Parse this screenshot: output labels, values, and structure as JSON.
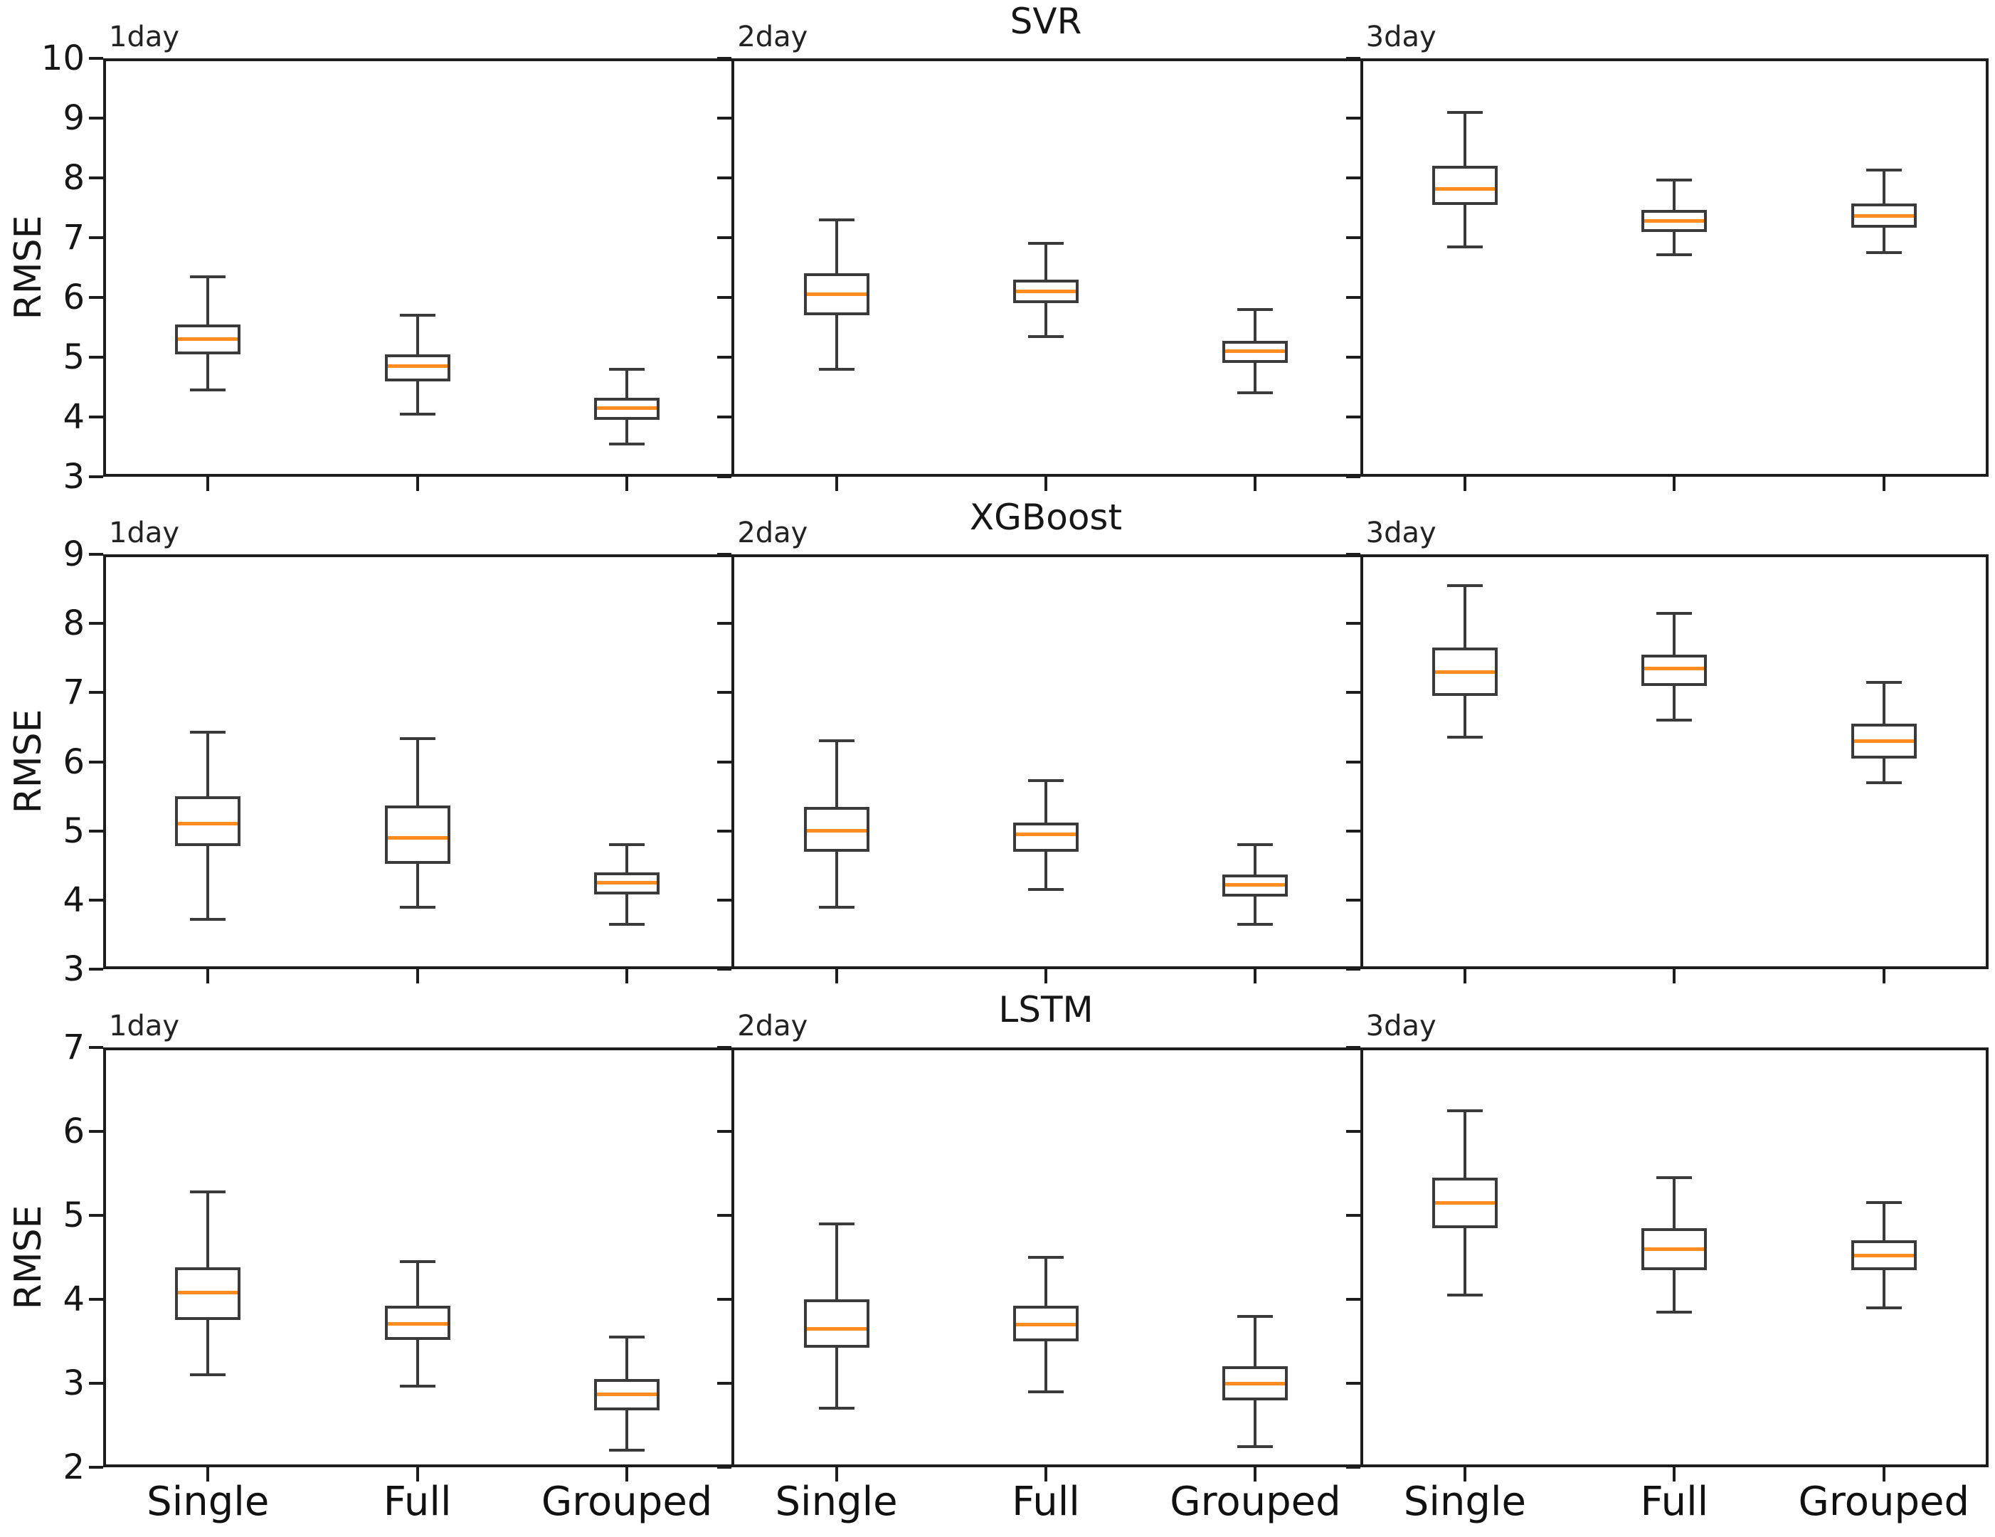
{
  "figure": {
    "ylabel": "RMSE",
    "row_titles": [
      "SVR",
      "XGBoost",
      "LSTM"
    ]
  },
  "chart_data": {
    "type": "boxplot-grid",
    "ylabel": "RMSE",
    "categories": [
      "Single",
      "Full",
      "Grouped"
    ],
    "col_labels": [
      "1day",
      "2day",
      "3day"
    ],
    "frame_color": "#1d1d1d",
    "box_color": "#3a3a3a",
    "median_color": "#ff8c21",
    "rows": [
      {
        "title": "SVR",
        "ylabel": "RMSE",
        "ylim": [
          3,
          10
        ],
        "yticks": [
          3,
          4,
          5,
          6,
          7,
          8,
          9,
          10
        ],
        "panels": [
          {
            "label": "1day",
            "boxes": [
              {
                "category": "Single",
                "whisker_low": 4.45,
                "q1": 5.05,
                "median": 5.3,
                "q3": 5.55,
                "whisker_high": 6.35
              },
              {
                "category": "Full",
                "whisker_low": 4.05,
                "q1": 4.6,
                "median": 4.85,
                "q3": 5.05,
                "whisker_high": 5.7
              },
              {
                "category": "Grouped",
                "whisker_low": 3.55,
                "q1": 3.95,
                "median": 4.15,
                "q3": 4.32,
                "whisker_high": 4.8
              }
            ]
          },
          {
            "label": "2day",
            "boxes": [
              {
                "category": "Single",
                "whisker_low": 4.8,
                "q1": 5.7,
                "median": 6.05,
                "q3": 6.4,
                "whisker_high": 7.3
              },
              {
                "category": "Full",
                "whisker_low": 5.35,
                "q1": 5.9,
                "median": 6.1,
                "q3": 6.3,
                "whisker_high": 6.9
              },
              {
                "category": "Grouped",
                "whisker_low": 4.4,
                "q1": 4.9,
                "median": 5.1,
                "q3": 5.27,
                "whisker_high": 5.8
              }
            ]
          },
          {
            "label": "3day",
            "boxes": [
              {
                "category": "Single",
                "whisker_low": 6.85,
                "q1": 7.55,
                "median": 7.82,
                "q3": 8.2,
                "whisker_high": 9.1
              },
              {
                "category": "Full",
                "whisker_low": 6.72,
                "q1": 7.1,
                "median": 7.28,
                "q3": 7.47,
                "whisker_high": 7.97
              },
              {
                "category": "Grouped",
                "whisker_low": 6.75,
                "q1": 7.17,
                "median": 7.36,
                "q3": 7.57,
                "whisker_high": 8.13
              }
            ]
          }
        ]
      },
      {
        "title": "XGBoost",
        "ylabel": "RMSE",
        "ylim": [
          3,
          9
        ],
        "yticks": [
          3,
          4,
          5,
          6,
          7,
          8,
          9
        ],
        "panels": [
          {
            "label": "1day",
            "boxes": [
              {
                "category": "Single",
                "whisker_low": 3.72,
                "q1": 4.78,
                "median": 5.1,
                "q3": 5.5,
                "whisker_high": 6.43
              },
              {
                "category": "Full",
                "whisker_low": 3.9,
                "q1": 4.52,
                "median": 4.9,
                "q3": 5.37,
                "whisker_high": 6.33
              },
              {
                "category": "Grouped",
                "whisker_low": 3.65,
                "q1": 4.08,
                "median": 4.25,
                "q3": 4.4,
                "whisker_high": 4.8
              }
            ]
          },
          {
            "label": "2day",
            "boxes": [
              {
                "category": "Single",
                "whisker_low": 3.9,
                "q1": 4.7,
                "median": 5.0,
                "q3": 5.35,
                "whisker_high": 6.3
              },
              {
                "category": "Full",
                "whisker_low": 4.15,
                "q1": 4.7,
                "median": 4.95,
                "q3": 5.12,
                "whisker_high": 5.73
              },
              {
                "category": "Grouped",
                "whisker_low": 3.65,
                "q1": 4.05,
                "median": 4.22,
                "q3": 4.37,
                "whisker_high": 4.8
              }
            ]
          },
          {
            "label": "3day",
            "boxes": [
              {
                "category": "Single",
                "whisker_low": 6.35,
                "q1": 6.95,
                "median": 7.3,
                "q3": 7.65,
                "whisker_high": 8.55
              },
              {
                "category": "Full",
                "whisker_low": 6.6,
                "q1": 7.1,
                "median": 7.35,
                "q3": 7.55,
                "whisker_high": 8.15
              },
              {
                "category": "Grouped",
                "whisker_low": 5.7,
                "q1": 6.05,
                "median": 6.3,
                "q3": 6.55,
                "whisker_high": 7.15
              }
            ]
          }
        ]
      },
      {
        "title": "LSTM",
        "ylabel": "RMSE",
        "ylim": [
          2,
          7
        ],
        "yticks": [
          2,
          3,
          4,
          5,
          6,
          7
        ],
        "panels": [
          {
            "label": "1day",
            "boxes": [
              {
                "category": "Single",
                "whisker_low": 3.1,
                "q1": 3.75,
                "median": 4.08,
                "q3": 4.38,
                "whisker_high": 5.28
              },
              {
                "category": "Full",
                "whisker_low": 2.97,
                "q1": 3.52,
                "median": 3.71,
                "q3": 3.92,
                "whisker_high": 4.45
              },
              {
                "category": "Grouped",
                "whisker_low": 2.2,
                "q1": 2.68,
                "median": 2.87,
                "q3": 3.05,
                "whisker_high": 3.55
              }
            ]
          },
          {
            "label": "2day",
            "boxes": [
              {
                "category": "Single",
                "whisker_low": 2.7,
                "q1": 3.42,
                "median": 3.65,
                "q3": 4.0,
                "whisker_high": 4.9
              },
              {
                "category": "Full",
                "whisker_low": 2.9,
                "q1": 3.5,
                "median": 3.7,
                "q3": 3.92,
                "whisker_high": 4.5
              },
              {
                "category": "Grouped",
                "whisker_low": 2.25,
                "q1": 2.8,
                "median": 3.0,
                "q3": 3.2,
                "whisker_high": 3.8
              }
            ]
          },
          {
            "label": "3day",
            "boxes": [
              {
                "category": "Single",
                "whisker_low": 4.05,
                "q1": 4.85,
                "median": 5.15,
                "q3": 5.45,
                "whisker_high": 6.25
              },
              {
                "category": "Full",
                "whisker_low": 3.85,
                "q1": 4.35,
                "median": 4.6,
                "q3": 4.85,
                "whisker_high": 5.45
              },
              {
                "category": "Grouped",
                "whisker_low": 3.9,
                "q1": 4.35,
                "median": 4.52,
                "q3": 4.7,
                "whisker_high": 5.15
              }
            ]
          }
        ]
      }
    ]
  }
}
